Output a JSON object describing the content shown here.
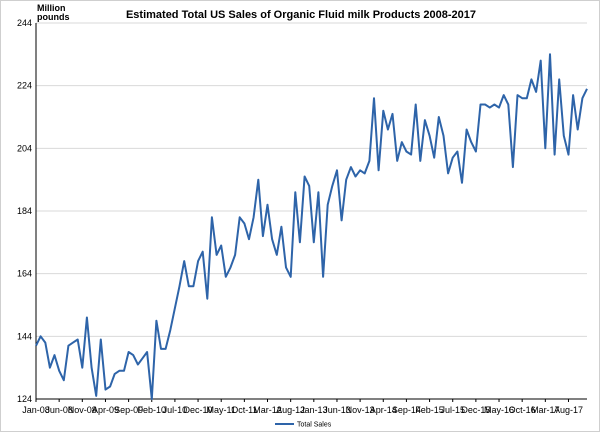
{
  "chart_data": {
    "type": "line",
    "title": "Estimated Total US Sales of Organic Fluid milk Products 2008-2017",
    "ylabel": "Million pounds",
    "xlabel": "",
    "ylim": [
      124,
      244
    ],
    "yticks": [
      124,
      144,
      164,
      184,
      204,
      224,
      244
    ],
    "grid": true,
    "legend_position": "bottom",
    "series_color": "#2E64A9",
    "x_tick_labels": [
      "Jan-08",
      "Jun-08",
      "Nov-08",
      "Apr-09",
      "Sep-09",
      "Feb-10",
      "Jul-10",
      "Dec-10",
      "May-11",
      "Oct-11",
      "Mar-12",
      "Aug-12",
      "Jan-13",
      "Jun-13",
      "Nov-13",
      "Apr-14",
      "Sep-14",
      "Feb-15",
      "Jul-15",
      "Dec-15",
      "May-16",
      "Oct-16",
      "Mar-17",
      "Aug-17"
    ],
    "x_tick_step_months": 5,
    "series": [
      {
        "name": "Total Sales",
        "values": [
          141,
          144,
          142,
          134,
          138,
          133,
          130,
          141,
          142,
          143,
          134,
          150,
          134,
          125,
          143,
          127,
          128,
          132,
          133,
          133,
          139,
          138,
          135,
          137,
          139,
          124,
          149,
          140,
          140,
          146,
          153,
          160,
          168,
          160,
          160,
          168,
          171,
          156,
          182,
          170,
          173,
          163,
          166,
          170,
          182,
          180,
          175,
          182,
          194,
          176,
          186,
          175,
          170,
          179,
          166,
          163,
          190,
          174,
          195,
          192,
          174,
          190,
          163,
          186,
          192,
          197,
          181,
          194,
          198,
          195,
          197,
          196,
          200,
          220,
          197,
          216,
          210,
          215,
          200,
          206,
          203,
          202,
          218,
          200,
          213,
          208,
          201,
          214,
          208,
          196,
          201,
          203,
          193,
          210,
          206,
          203,
          218,
          218,
          217,
          218,
          217,
          221,
          218,
          198,
          221,
          220,
          220,
          226,
          222,
          232,
          204,
          234,
          202,
          226,
          208,
          202,
          221,
          210,
          220,
          223
        ]
      }
    ]
  }
}
